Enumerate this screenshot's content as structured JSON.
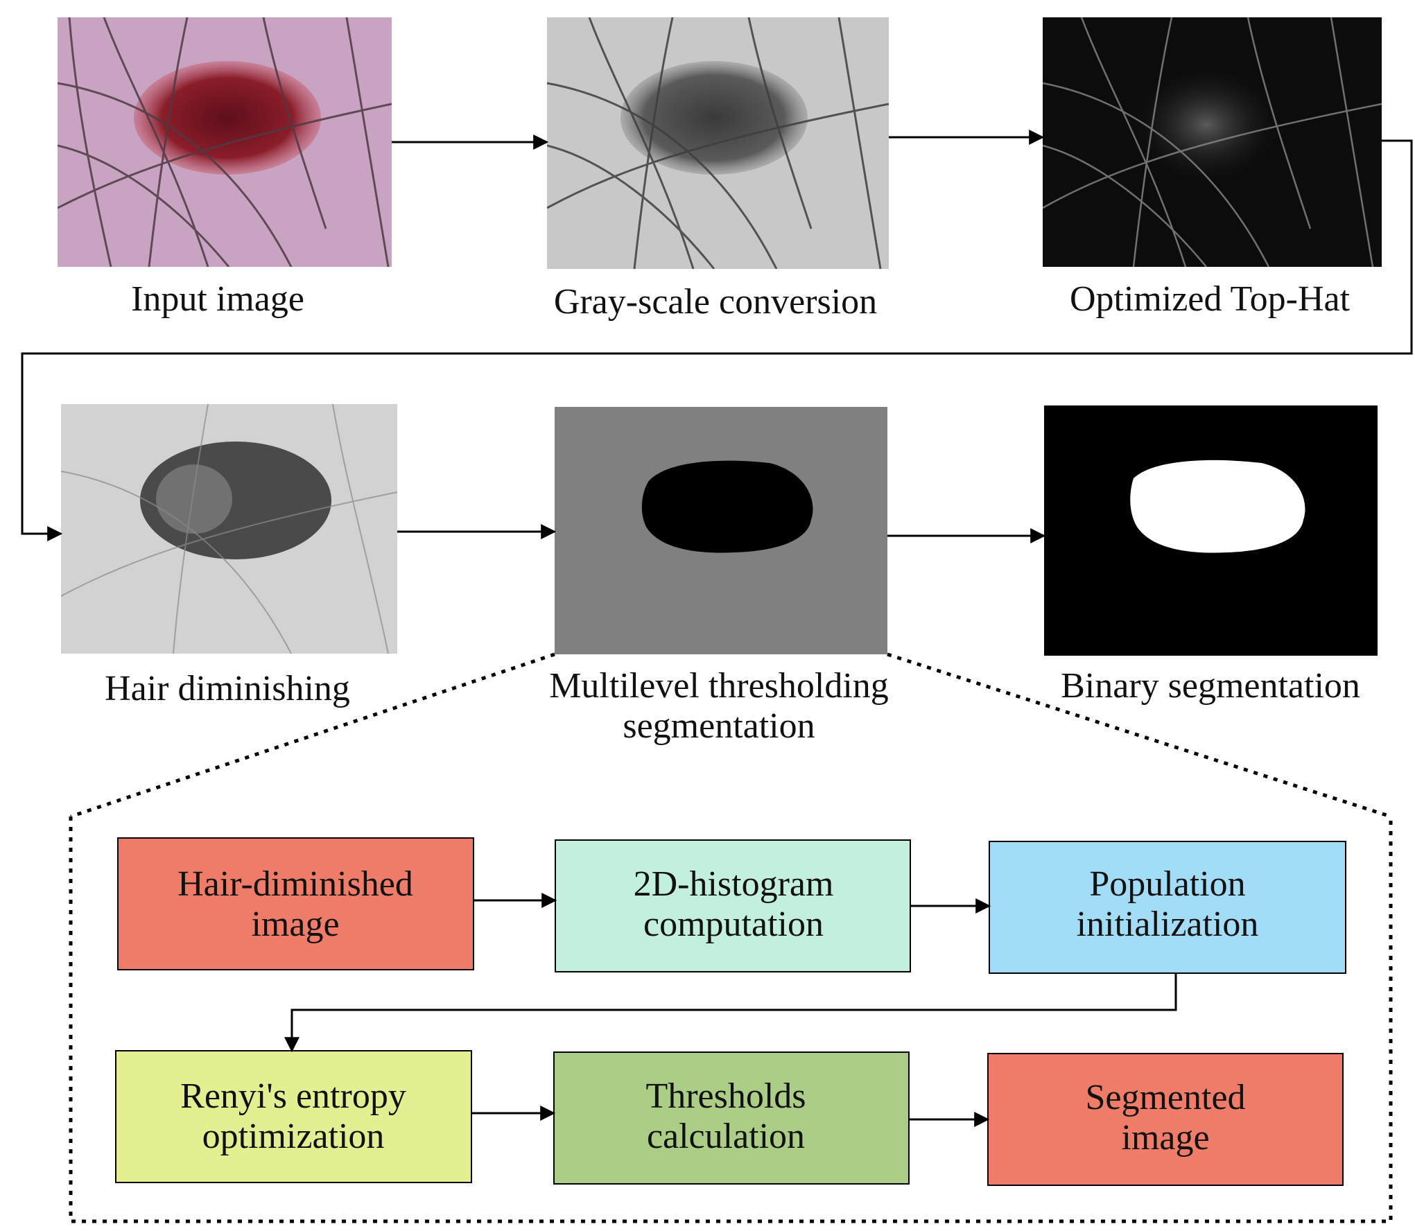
{
  "images": [
    {
      "id": "input",
      "label": "Input image"
    },
    {
      "id": "gray",
      "label": "Gray-scale conversion"
    },
    {
      "id": "tophat",
      "label": "Optimized Top-Hat"
    },
    {
      "id": "hair",
      "label": "Hair diminishing"
    },
    {
      "id": "multi",
      "label_lines": [
        "Multilevel thresholding",
        "segmentation"
      ]
    },
    {
      "id": "binary",
      "label": "Binary segmentation"
    }
  ],
  "steps": [
    {
      "id": "hair-diminished",
      "lines": [
        "Hair-diminished",
        "image"
      ],
      "color": "#ef7c69"
    },
    {
      "id": "histogram",
      "lines": [
        "2D-histogram",
        "computation"
      ],
      "color": "#c3f0dd"
    },
    {
      "id": "population",
      "lines": [
        "Population",
        "initialization"
      ],
      "color": "#a3dcf6"
    },
    {
      "id": "renyi",
      "lines": [
        "Renyi's entropy",
        "optimization"
      ],
      "color": "#e4ef92"
    },
    {
      "id": "thresholds",
      "lines": [
        "Thresholds",
        "calculation"
      ],
      "color": "#abcd85"
    },
    {
      "id": "segmented",
      "lines": [
        "Segmented",
        "image"
      ],
      "color": "#ef7c69"
    }
  ],
  "colors": {
    "skin": "#c9a4c2",
    "lesion": "#8a1d29",
    "gray_bg": "#c8c8c8",
    "mid_gray": "#808080",
    "black": "#000000",
    "white": "#ffffff"
  }
}
